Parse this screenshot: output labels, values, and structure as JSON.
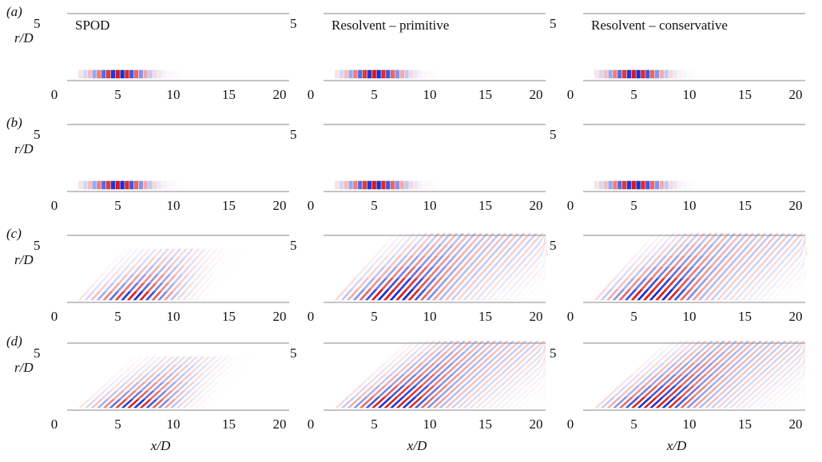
{
  "figure": {
    "rows": [
      "(a)",
      "(b)",
      "(c)",
      "(d)"
    ],
    "columns": [
      "SPOD",
      "Resolvent – primitive",
      "Resolvent – conservative"
    ],
    "xlabel": "x/D",
    "ylabel": "r/D",
    "xlim": [
      0,
      20
    ],
    "ylim": [
      0,
      6
    ],
    "xticks": [
      0,
      5,
      10,
      15,
      20
    ],
    "yticks": [
      5
    ]
  }
}
